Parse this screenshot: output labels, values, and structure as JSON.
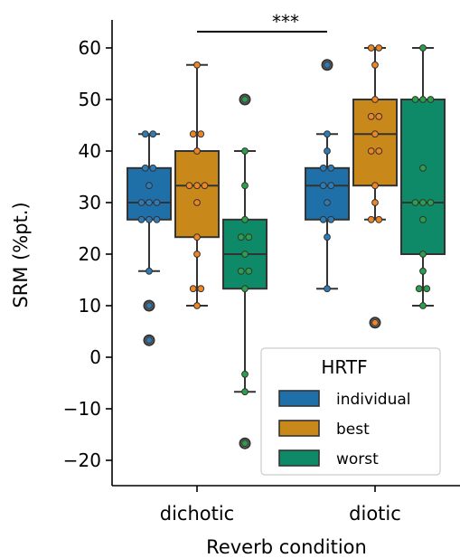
{
  "chart_data": {
    "type": "boxplot",
    "xlabel": "Reverb condition",
    "ylabel": "SRM (%pt.)",
    "categories": [
      "dichotic",
      "diotic"
    ],
    "ylim": [
      -25,
      65
    ],
    "yticks": [
      60,
      50,
      40,
      30,
      20,
      10,
      0,
      -10,
      -20
    ],
    "ytick_labels": [
      "60",
      "50",
      "40",
      "30",
      "20",
      "10",
      "0",
      "−10",
      "−20"
    ],
    "significance": {
      "label": "***",
      "from": "dichotic best",
      "to": "diotic individual"
    },
    "legend": {
      "title": "HRTF",
      "position": "lower-right"
    },
    "series": [
      {
        "name": "individual",
        "color": "#1f6fa8",
        "point_color": "#2f7bb6",
        "boxes": [
          {
            "category": "dichotic",
            "q1": 26.7,
            "median": 30,
            "q3": 36.7,
            "whisker_low": 16.7,
            "whisker_high": 43.3,
            "outliers": [
              10,
              3.3
            ],
            "points": [
              43.3,
              43.3,
              36.7,
              36.7,
              33.3,
              30,
              30,
              30,
              26.7,
              26.7,
              26.7,
              16.7,
              10,
              3.3
            ]
          },
          {
            "category": "diotic",
            "q1": 26.7,
            "median": 33.3,
            "q3": 36.7,
            "whisker_low": 13.3,
            "whisker_high": 43.3,
            "outliers": [
              56.7
            ],
            "points": [
              56.7,
              43.3,
              40,
              36.7,
              36.7,
              33.3,
              33.3,
              30,
              26.7,
              26.7,
              23.3,
              13.3
            ]
          }
        ]
      },
      {
        "name": "best",
        "color": "#c9881a",
        "point_color": "#f08524",
        "boxes": [
          {
            "category": "dichotic",
            "q1": 23.3,
            "median": 33.3,
            "q3": 40,
            "whisker_low": 10,
            "whisker_high": 56.7,
            "outliers": [],
            "points": [
              56.7,
              43.3,
              43.3,
              40,
              33.3,
              33.3,
              33.3,
              30,
              23.3,
              20,
              13.3,
              13.3,
              10
            ]
          },
          {
            "category": "diotic",
            "q1": 33.3,
            "median": 43.3,
            "q3": 50,
            "whisker_low": 26.7,
            "whisker_high": 60,
            "outliers": [
              6.7
            ],
            "points": [
              60,
              60,
              56.7,
              50,
              46.7,
              46.7,
              43.3,
              40,
              40,
              33.3,
              30,
              26.7,
              26.7,
              6.7
            ]
          }
        ]
      },
      {
        "name": "worst",
        "color": "#0e8a68",
        "point_color": "#2aa04a",
        "boxes": [
          {
            "category": "dichotic",
            "q1": 13.3,
            "median": 20,
            "q3": 26.7,
            "whisker_low": -6.7,
            "whisker_high": 40,
            "outliers": [
              50,
              -16.7
            ],
            "points": [
              50,
              40,
              33.3,
              26.7,
              23.3,
              23.3,
              20,
              16.7,
              16.7,
              13.3,
              -3.3,
              -6.7,
              -16.7
            ]
          },
          {
            "category": "diotic",
            "q1": 20,
            "median": 30,
            "q3": 50,
            "whisker_low": 10,
            "whisker_high": 60,
            "outliers": [],
            "points": [
              60,
              50,
              50,
              50,
              36.7,
              30,
              30,
              30,
              26.7,
              20,
              16.7,
              13.3,
              13.3,
              10
            ]
          }
        ]
      }
    ]
  }
}
